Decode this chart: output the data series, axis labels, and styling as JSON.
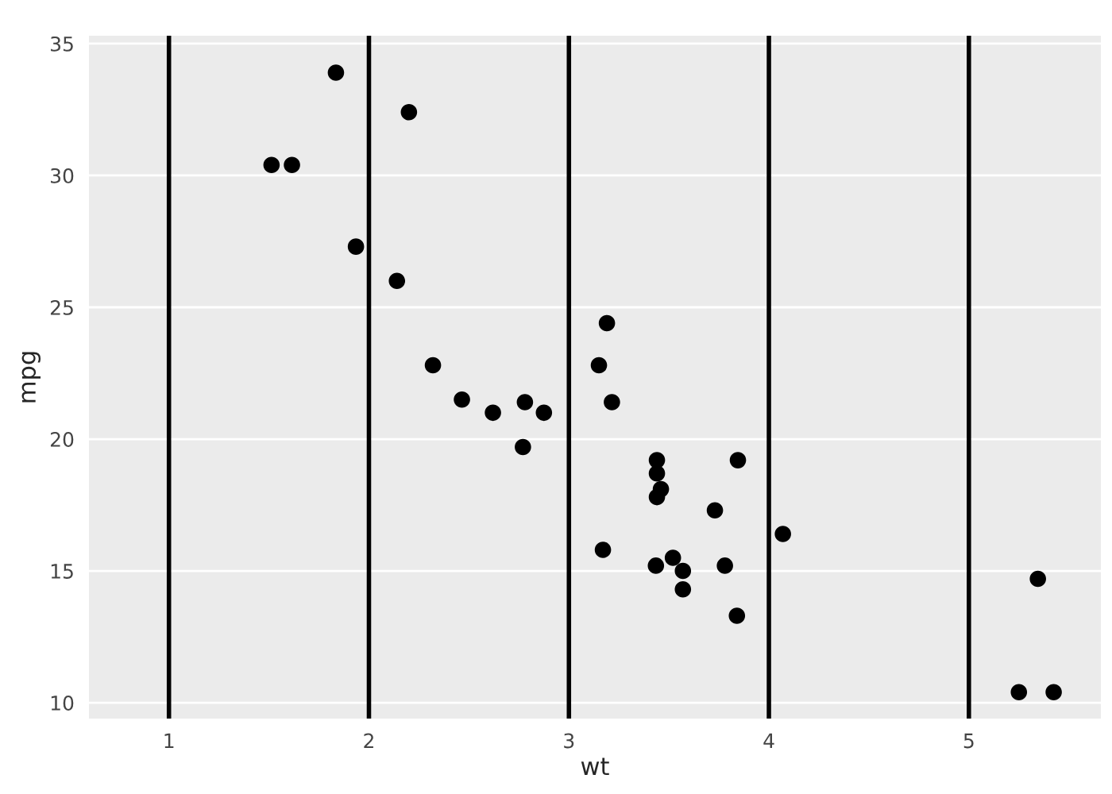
{
  "chart_data": {
    "type": "scatter",
    "xlabel": "wt",
    "ylabel": "mpg",
    "x": [
      2.62,
      2.875,
      2.32,
      3.215,
      3.44,
      3.46,
      3.57,
      3.19,
      3.15,
      3.44,
      3.44,
      4.07,
      3.73,
      3.78,
      5.25,
      5.424,
      5.345,
      2.2,
      1.615,
      1.835,
      2.465,
      3.52,
      3.435,
      3.84,
      3.845,
      1.935,
      2.14,
      1.513,
      3.17,
      2.77,
      3.57,
      2.78
    ],
    "series": [
      {
        "color": "#000000",
        "values": [
          21.0,
          21.0,
          22.8,
          21.4,
          18.7,
          18.1,
          14.3,
          24.4,
          22.8,
          19.2,
          17.8,
          16.4,
          17.3,
          15.2,
          10.4,
          10.4,
          14.7,
          32.4,
          30.4,
          33.9,
          21.5,
          15.5,
          15.2,
          13.3,
          19.2,
          27.3,
          26.0,
          30.4,
          15.8,
          19.7,
          15.0,
          21.4
        ]
      }
    ],
    "xlim": [
      0.6,
      5.66
    ],
    "ylim": [
      9.4,
      35.3
    ],
    "xticks": [
      1,
      2,
      3,
      4,
      5
    ],
    "yticks": [
      10,
      15,
      20,
      25,
      30,
      35
    ],
    "grid": "y",
    "marker": "circle",
    "ref_lines": [
      {
        "axis": "x",
        "value": 1,
        "color": "#000000"
      },
      {
        "axis": "x",
        "value": 2,
        "color": "#000000"
      },
      {
        "axis": "x",
        "value": 3,
        "color": "#000000"
      },
      {
        "axis": "x",
        "value": 4,
        "color": "#000000"
      },
      {
        "axis": "x",
        "value": 5,
        "color": "#000000"
      }
    ]
  }
}
